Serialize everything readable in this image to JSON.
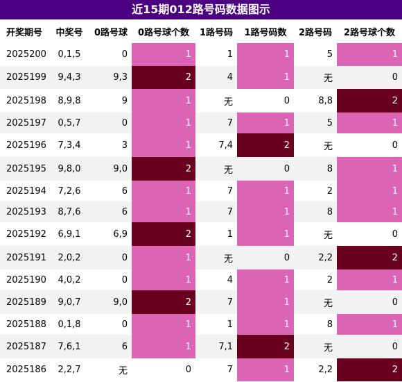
{
  "title": "近15期012路号码数据图示",
  "headers": [
    "开奖期号",
    "中奖号",
    "0路号球",
    "0路号球个数",
    "1路号码",
    "1路号码数",
    "2路号码",
    "2路号球个数"
  ],
  "rows": [
    [
      "2025200",
      "0,1,5",
      "0",
      "1",
      "1",
      "1",
      "5",
      "1"
    ],
    [
      "2025199",
      "9,4,3",
      "9,3",
      "2",
      "4",
      "1",
      "无",
      "0"
    ],
    [
      "2025198",
      "8,9,8",
      "9",
      "1",
      "无",
      "0",
      "8,8",
      "2"
    ],
    [
      "2025197",
      "0,5,7",
      "0",
      "1",
      "7",
      "1",
      "5",
      "1"
    ],
    [
      "2025196",
      "7,3,4",
      "3",
      "1",
      "7,4",
      "2",
      "无",
      "0"
    ],
    [
      "2025195",
      "9,8,0",
      "9,0",
      "2",
      "无",
      "0",
      "8",
      "1"
    ],
    [
      "2025194",
      "7,2,6",
      "6",
      "1",
      "7",
      "1",
      "2",
      "1"
    ],
    [
      "2025193",
      "8,7,6",
      "6",
      "1",
      "7",
      "1",
      "8",
      "1"
    ],
    [
      "2025192",
      "6,9,1",
      "6,9",
      "2",
      "1",
      "1",
      "无",
      "0"
    ],
    [
      "2025191",
      "2,0,2",
      "0",
      "1",
      "无",
      "0",
      "2,2",
      "2"
    ],
    [
      "2025190",
      "4,0,2",
      "0",
      "1",
      "4",
      "1",
      "2",
      "1"
    ],
    [
      "2025189",
      "9,0,7",
      "9,0",
      "2",
      "7",
      "1",
      "无",
      "0"
    ],
    [
      "2025188",
      "0,1,8",
      "0",
      "1",
      "1",
      "1",
      "8",
      "1"
    ],
    [
      "2025187",
      "7,6,1",
      "6",
      "1",
      "7,1",
      "2",
      "无",
      "0"
    ],
    [
      "2025186",
      "2,2,7",
      "无",
      "0",
      "7",
      "1",
      "2,2",
      "2"
    ]
  ],
  "colors": {
    "header_bar": "#4b0082",
    "count_1": "#dc64b4",
    "count_2": "#68001e",
    "stripe": "#f2f2f2"
  }
}
